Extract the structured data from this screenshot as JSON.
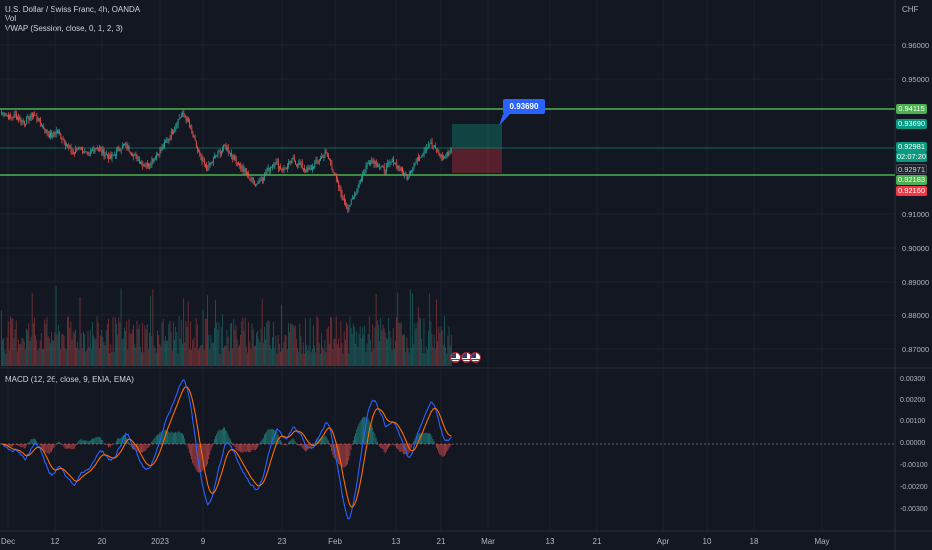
{
  "header": {
    "title": "U.S. Dollar / Swiss Franc, 4h, OANDA",
    "vol_label": "Vol",
    "vwap_label": "VWAP (Session, close, 0, 1, 2, 3)",
    "currency": "CHF",
    "macd_label": "MACD (12, 26, close, 9, EMA, EMA)"
  },
  "price_axis": [
    "0.96000",
    "0.95000",
    "0.91000",
    "0.90000",
    "0.89000",
    "0.88000",
    "0.87000"
  ],
  "macd_axis": [
    "0.00300",
    "0.00200",
    "0.00100",
    "0.00000",
    "-0.00100",
    "-0.00200",
    "-0.00300"
  ],
  "price_tags": [
    {
      "label": "0.94115",
      "color": "#4caf50"
    },
    {
      "label": "0.93690",
      "color": "#089981"
    },
    {
      "label": "0.92981",
      "color": "#089981"
    },
    {
      "label": "02:07:20",
      "color": "#089981"
    },
    {
      "label": "0.92971",
      "color": "#1e222d"
    },
    {
      "label": "0.92183",
      "color": "#4caf50"
    },
    {
      "label": "0.92160",
      "color": "#f23645"
    }
  ],
  "callout": "0.93690",
  "time_axis": [
    "Dec",
    "12",
    "20",
    "2023",
    "9",
    "23",
    "Feb",
    "13",
    "21",
    "Mar",
    "13",
    "21",
    "Apr",
    "10",
    "18",
    "May"
  ],
  "colors": {
    "up": "#26a69a",
    "down": "#ef5350",
    "level": "#4caf50",
    "macd": "#2962ff",
    "signal": "#ff6d00",
    "target": "#089981",
    "stop": "#f23645"
  },
  "chart_data": {
    "type": "candlestick",
    "symbol": "U.S. Dollar / Swiss Franc",
    "interval": "4h",
    "source": "OANDA",
    "levels": [
      0.94115,
      0.92183
    ],
    "position": {
      "entry": 0.92981,
      "target": 0.9369,
      "stop": 0.9216
    },
    "price_close": [
      0.94,
      0.9395,
      0.9385,
      0.9392,
      0.938,
      0.937,
      0.9385,
      0.9395,
      0.938,
      0.936,
      0.934,
      0.933,
      0.9345,
      0.933,
      0.931,
      0.929,
      0.928,
      0.93,
      0.9285,
      0.927,
      0.929,
      0.93,
      0.9285,
      0.9275,
      0.9265,
      0.928,
      0.9295,
      0.9305,
      0.929,
      0.9275,
      0.926,
      0.925,
      0.9245,
      0.926,
      0.9275,
      0.929,
      0.931,
      0.933,
      0.936,
      0.9385,
      0.9395,
      0.937,
      0.933,
      0.929,
      0.9255,
      0.9235,
      0.925,
      0.927,
      0.9285,
      0.93,
      0.9285,
      0.9265,
      0.925,
      0.923,
      0.9215,
      0.92,
      0.919,
      0.9205,
      0.922,
      0.924,
      0.9255,
      0.924,
      0.923,
      0.9245,
      0.926,
      0.925,
      0.924,
      0.9228,
      0.9235,
      0.925,
      0.9265,
      0.928,
      0.926,
      0.922,
      0.918,
      0.914,
      0.912,
      0.914,
      0.9175,
      0.921,
      0.924,
      0.926,
      0.9255,
      0.924,
      0.923,
      0.9245,
      0.926,
      0.924,
      0.9225,
      0.921,
      0.9235,
      0.9255,
      0.9275,
      0.9295,
      0.9312,
      0.9295,
      0.9275,
      0.9265,
      0.928,
      0.9298
    ],
    "macd_range": [
      -0.003,
      0.003
    ]
  }
}
